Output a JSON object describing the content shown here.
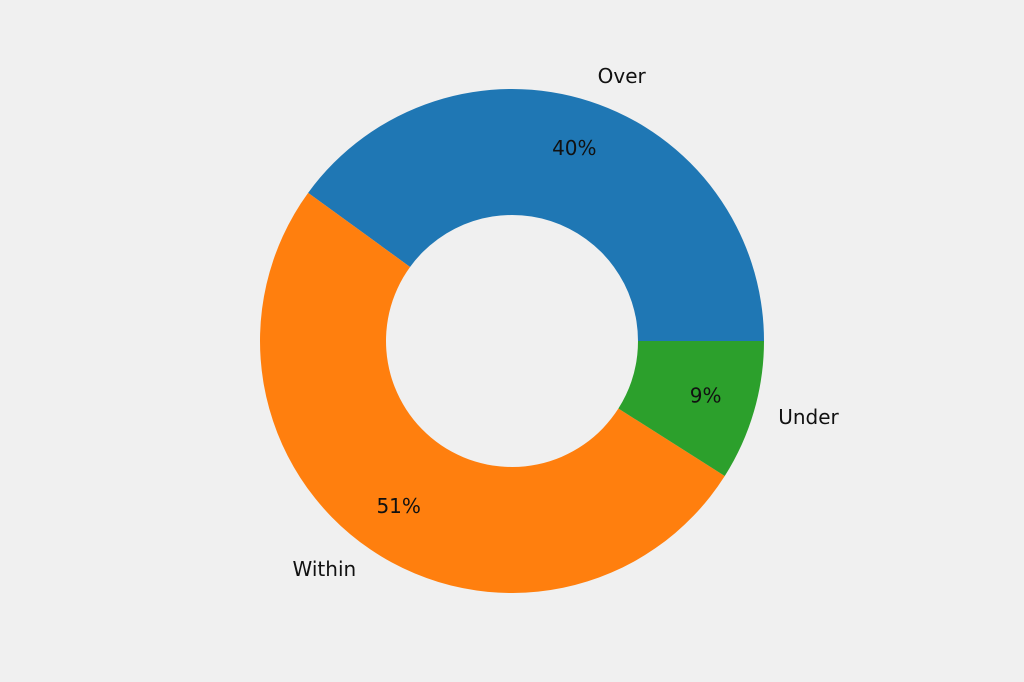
{
  "chart_data": {
    "type": "donut",
    "categories": [
      "Over",
      "Within",
      "Under"
    ],
    "values": [
      40,
      51,
      9
    ],
    "value_labels": [
      "40%",
      "51%",
      "9%"
    ],
    "colors": [
      "#1f77b4",
      "#ff7f0e",
      "#2ca02c"
    ]
  }
}
